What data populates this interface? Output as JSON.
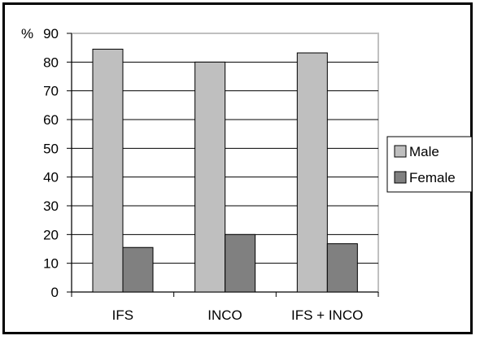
{
  "chart_data": {
    "type": "bar",
    "title": "",
    "xlabel": "",
    "ylabel": "%",
    "categories": [
      "IFS",
      "INCO",
      "IFS + INCO"
    ],
    "series": [
      {
        "name": "Male",
        "values": [
          84.5,
          80,
          83.2
        ],
        "color": "#bfbfbf"
      },
      {
        "name": "Female",
        "values": [
          15.5,
          20,
          16.8
        ],
        "color": "#808080"
      }
    ],
    "ylim": [
      0,
      90
    ],
    "yticks": [
      "0",
      "10",
      "20",
      "30",
      "40",
      "50",
      "60",
      "70",
      "80",
      "90"
    ],
    "grid": true,
    "legend": "right"
  }
}
